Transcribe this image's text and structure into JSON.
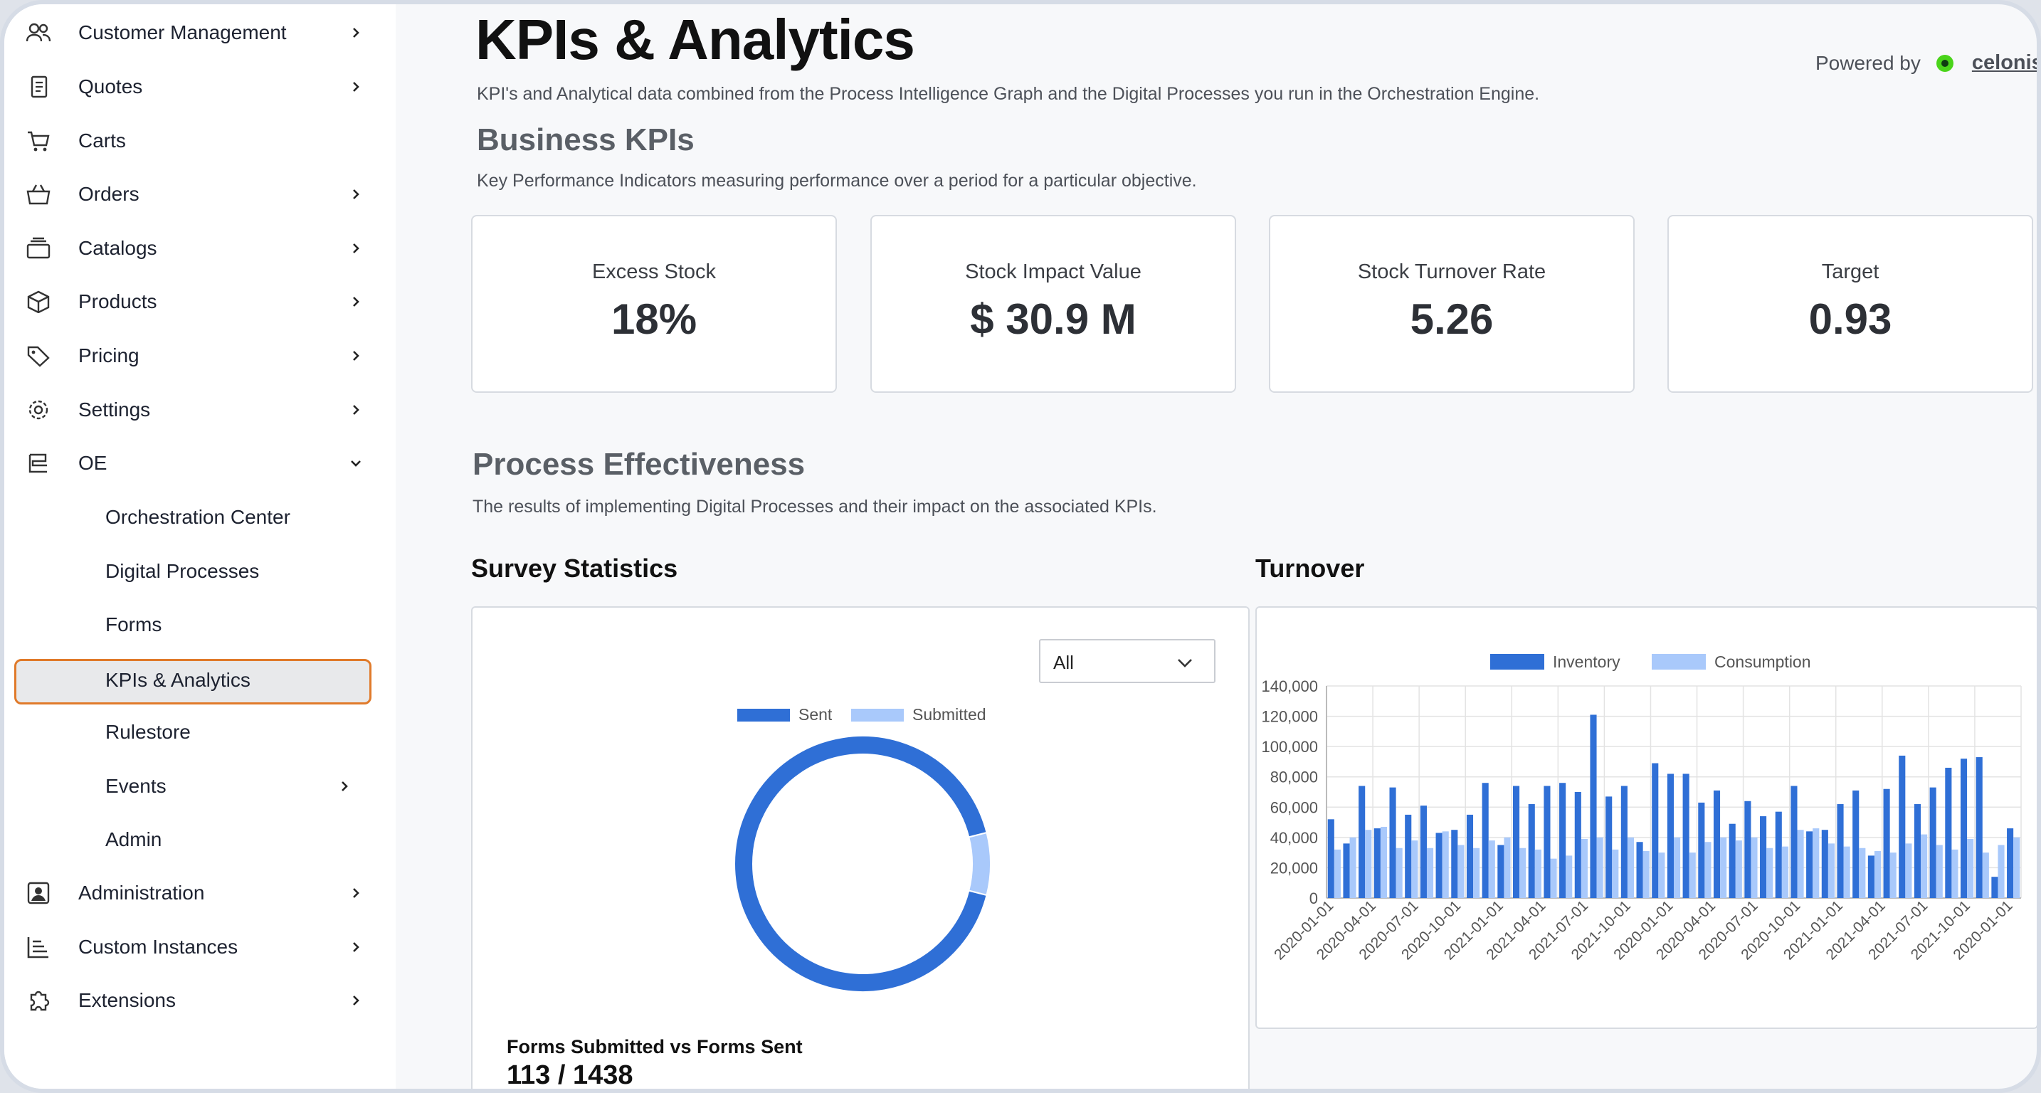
{
  "sidebar": {
    "items": [
      {
        "label": "Customer Management",
        "icon": "users-icon",
        "chevron": "right"
      },
      {
        "label": "Quotes",
        "icon": "document-icon",
        "chevron": "right"
      },
      {
        "label": "Carts",
        "icon": "cart-icon",
        "chevron": ""
      },
      {
        "label": "Orders",
        "icon": "basket-icon",
        "chevron": "right"
      },
      {
        "label": "Catalogs",
        "icon": "catalog-icon",
        "chevron": "right"
      },
      {
        "label": "Products",
        "icon": "box-icon",
        "chevron": "right"
      },
      {
        "label": "Pricing",
        "icon": "tag-icon",
        "chevron": "right"
      },
      {
        "label": "Settings",
        "icon": "gear-icon",
        "chevron": "right"
      },
      {
        "label": "OE",
        "icon": "orchestration-icon",
        "chevron": "down"
      }
    ],
    "oe_children": [
      {
        "label": "Orchestration Center"
      },
      {
        "label": "Digital Processes"
      },
      {
        "label": "Forms"
      },
      {
        "label": "KPIs & Analytics",
        "active": true
      },
      {
        "label": "Rulestore"
      },
      {
        "label": "Events",
        "chevron": "right"
      },
      {
        "label": "Admin"
      }
    ],
    "bottom_items": [
      {
        "label": "Administration",
        "icon": "admin-icon"
      },
      {
        "label": "Custom Instances",
        "icon": "hierarchy-icon"
      },
      {
        "label": "Extensions",
        "icon": "puzzle-icon"
      }
    ]
  },
  "page": {
    "title": "KPIs & Analytics",
    "subtitle": "KPI's and Analytical data combined from the Process Intelligence Graph and the Digital Processes you run in the Orchestration Engine.",
    "powered_by": "Powered by",
    "brand": "celonis"
  },
  "business_kpis": {
    "title": "Business KPIs",
    "description": "Key Performance Indicators measuring performance over a period for a particular objective.",
    "cards": [
      {
        "label": "Excess Stock",
        "value": "18%"
      },
      {
        "label": "Stock Impact Value",
        "value": "$ 30.9 M"
      },
      {
        "label": "Stock Turnover Rate",
        "value": "5.26"
      },
      {
        "label": "Target",
        "value": "0.93"
      }
    ]
  },
  "process_effectiveness": {
    "title": "Process Effectiveness",
    "description": "The results of implementing Digital Processes and their impact on the associated KPIs."
  },
  "survey": {
    "title": "Survey Statistics",
    "filter_value": "All",
    "forms_label": "Forms Submitted vs Forms Sent",
    "forms_value": "113 / 1438"
  },
  "turnover": {
    "title": "Turnover"
  },
  "colors": {
    "accent": "#2f6fd6",
    "light_series": "#a9c9fb",
    "active_border": "#e07a2a"
  },
  "chart_data": [
    {
      "type": "pie",
      "variant": "doughnut",
      "legend": [
        "Sent",
        "Submitted"
      ],
      "legend_position": "top",
      "values": [
        1325,
        113
      ],
      "colors": [
        "#2f6fd6",
        "#a9c9fb"
      ]
    },
    {
      "type": "bar",
      "legend": [
        "Inventory",
        "Consumption"
      ],
      "legend_position": "top",
      "ylim": [
        0,
        140000
      ],
      "yticks": [
        "0",
        "20,000",
        "40,000",
        "60,000",
        "80,000",
        "100,000",
        "120,000",
        "140,000"
      ],
      "xtick_labels": [
        "2020-01-01",
        "2020-04-01",
        "2020-07-01",
        "2020-10-01",
        "2021-01-01",
        "2021-04-01",
        "2021-07-01",
        "2021-10-01",
        "2020-01-01",
        "2020-04-01",
        "2020-07-01",
        "2020-10-01",
        "2021-01-01",
        "2021-04-01",
        "2021-07-01",
        "2021-10-01",
        "2020-01-01"
      ],
      "grid": true,
      "series": [
        {
          "name": "Inventory",
          "color": "#2f6fd6",
          "values": [
            52000,
            36000,
            74000,
            46000,
            73000,
            55000,
            61000,
            43000,
            45000,
            55000,
            76000,
            35000,
            74000,
            62000,
            74000,
            76000,
            70000,
            121000,
            67000,
            74000,
            37000,
            89000,
            82000,
            82000,
            63000,
            71000,
            49000,
            64000,
            54000,
            57000,
            74000,
            44000,
            45000,
            62000,
            71000,
            28000,
            72000,
            94000,
            62000,
            73000,
            86000,
            92000,
            93000,
            14000,
            46000
          ]
        },
        {
          "name": "Consumption",
          "color": "#a9c9fb",
          "values": [
            32000,
            40000,
            45000,
            47000,
            33000,
            38000,
            33000,
            44000,
            35000,
            33000,
            38000,
            40000,
            33000,
            32000,
            26000,
            28000,
            39000,
            40000,
            32000,
            40000,
            31000,
            30000,
            40000,
            30000,
            37000,
            40000,
            38000,
            40000,
            33000,
            34000,
            45000,
            46000,
            36000,
            34000,
            33000,
            31000,
            30000,
            36000,
            42000,
            35000,
            32000,
            39000,
            30000,
            35000,
            40000
          ]
        }
      ]
    }
  ]
}
